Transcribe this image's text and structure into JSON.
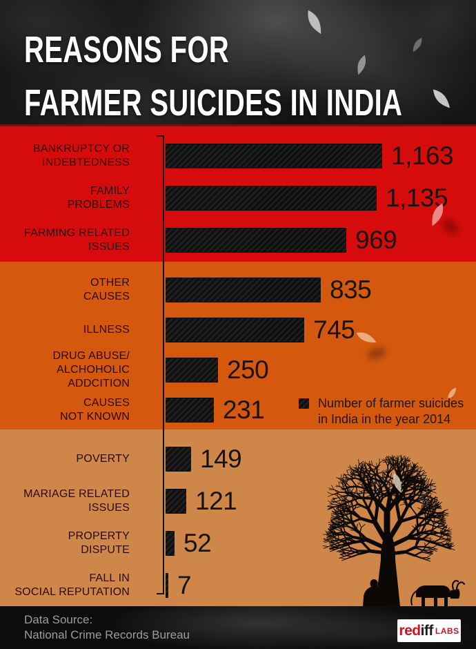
{
  "header": {
    "title_line1": "REASONS FOR",
    "title_line2": "FARMER SUICIDES IN INDIA"
  },
  "chart_data": {
    "type": "bar",
    "orientation": "horizontal",
    "title": "Reasons for Farmer Suicides in India",
    "xlabel": "",
    "ylabel": "",
    "value_range": [
      0,
      1163
    ],
    "legend": {
      "label_line1": "Number of farmer suicides",
      "label_line2": "in India in the year 2014",
      "position": "bottom-right"
    },
    "categories": [
      "BANKRUPTCY OR INDEBTEDNESS",
      "FAMILY PROBLEMS",
      "FARMING RELATED ISSUES",
      "OTHER CAUSES",
      "ILLNESS",
      "DRUG ABUSE/ ALCHOHOLIC ADDCITION",
      "CAUSES NOT KNOWN",
      "POVERTY",
      "MARIAGE RELATED ISSUES",
      "PROPERTY DISPUTE",
      "FALL IN SOCIAL REPUTATION"
    ],
    "values": [
      1163,
      1135,
      969,
      835,
      745,
      250,
      231,
      149,
      121,
      52,
      7
    ],
    "groups": [
      {
        "band_color": "#d60c0c",
        "items": [
          {
            "label_lines": [
              "BANKRUPTCY OR",
              "INDEBTEDNESS"
            ],
            "value": 1163,
            "display": "1,163"
          },
          {
            "label_lines": [
              "FAMILY",
              "PROBLEMS"
            ],
            "value": 1135,
            "display": "1,135"
          },
          {
            "label_lines": [
              "FARMING RELATED",
              "ISSUES"
            ],
            "value": 969,
            "display": "969"
          }
        ]
      },
      {
        "band_color": "#d4590e",
        "items": [
          {
            "label_lines": [
              "OTHER",
              "CAUSES"
            ],
            "value": 835,
            "display": "835"
          },
          {
            "label_lines": [
              "ILLNESS"
            ],
            "value": 745,
            "display": "745"
          },
          {
            "label_lines": [
              "DRUG ABUSE/",
              "ALCHOHOLIC",
              "ADDCITION"
            ],
            "value": 250,
            "display": "250"
          },
          {
            "label_lines": [
              "CAUSES",
              "NOT KNOWN"
            ],
            "value": 231,
            "display": "231"
          }
        ]
      },
      {
        "band_color": "#cf8749",
        "items": [
          {
            "label_lines": [
              "POVERTY"
            ],
            "value": 149,
            "display": "149"
          },
          {
            "label_lines": [
              "MARIAGE RELATED",
              "ISSUES"
            ],
            "value": 121,
            "display": "121"
          },
          {
            "label_lines": [
              "PROPERTY",
              "DISPUTE"
            ],
            "value": 52,
            "display": "52"
          },
          {
            "label_lines": [
              "FALL IN",
              "SOCIAL REPUTATION"
            ],
            "value": 7,
            "display": "7"
          }
        ]
      }
    ]
  },
  "footer": {
    "source_label": "Data Source:",
    "source_name": "National Crime Records Bureau"
  },
  "brand": {
    "name_red": "red",
    "name_dark": "iff",
    "labs": "LABS"
  },
  "colors": {
    "red_band": "#d60c0c",
    "orange_band": "#d4590e",
    "tan_band": "#cf8749",
    "divider": "#7a0d0d",
    "bar_fill": "#161616",
    "label_text": "#2a0802",
    "value_text": "#161312",
    "logo_red": "#d0121a"
  }
}
